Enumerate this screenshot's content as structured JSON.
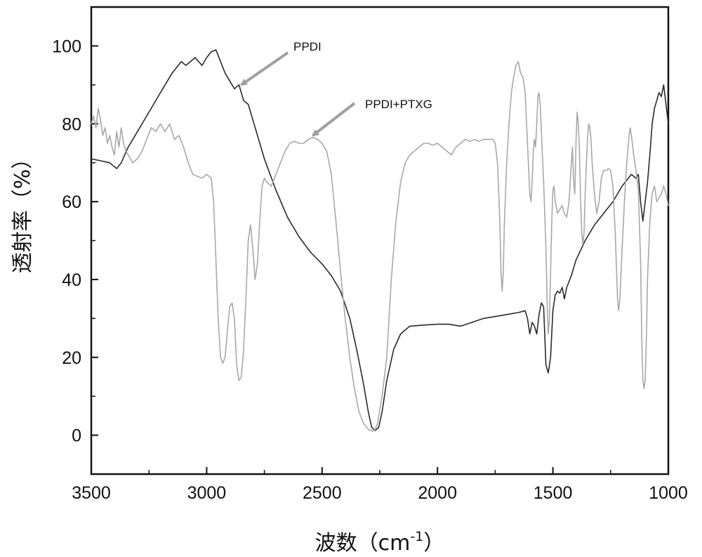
{
  "chart_data": {
    "type": "line",
    "title": "",
    "xlabel": "波数（cm",
    "xlabel_sup": "-1",
    "xlabel_close": "）",
    "ylabel": "透射率（%）",
    "xlim": [
      3500,
      1000
    ],
    "ylim": [
      -10,
      110
    ],
    "x_reversed": true,
    "grid": false,
    "xticks": [
      {
        "value": 3500,
        "label": "3500"
      },
      {
        "value": 3000,
        "label": "3000"
      },
      {
        "value": 2500,
        "label": "2500"
      },
      {
        "value": 2000,
        "label": "2000"
      },
      {
        "value": 1500,
        "label": "1500"
      },
      {
        "value": 1000,
        "label": "1000"
      }
    ],
    "yticks": [
      {
        "value": 0,
        "label": "0"
      },
      {
        "value": 20,
        "label": "20"
      },
      {
        "value": 40,
        "label": "40"
      },
      {
        "value": 60,
        "label": "60"
      },
      {
        "value": 80,
        "label": "80"
      },
      {
        "value": 100,
        "label": "100"
      }
    ],
    "annotations": [
      {
        "text": "PPDI",
        "points_to": [
          2850,
          90
        ]
      },
      {
        "text": "PPDI+PTXG",
        "points_to": [
          2540,
          77
        ]
      }
    ],
    "series": [
      {
        "name": "PPDI",
        "color": "#2a2a2a",
        "points": [
          [
            3500,
            71
          ],
          [
            3460,
            70.5
          ],
          [
            3420,
            70
          ],
          [
            3390,
            68.5
          ],
          [
            3370,
            70
          ],
          [
            3340,
            74
          ],
          [
            3300,
            78
          ],
          [
            3250,
            83
          ],
          [
            3200,
            88
          ],
          [
            3150,
            93
          ],
          [
            3110,
            96
          ],
          [
            3090,
            95
          ],
          [
            3070,
            96
          ],
          [
            3050,
            97
          ],
          [
            3020,
            95
          ],
          [
            3000,
            97
          ],
          [
            2980,
            98.5
          ],
          [
            2960,
            99
          ],
          [
            2940,
            96
          ],
          [
            2920,
            93
          ],
          [
            2900,
            91
          ],
          [
            2880,
            89
          ],
          [
            2860,
            90
          ],
          [
            2840,
            86
          ],
          [
            2820,
            85
          ],
          [
            2800,
            81
          ],
          [
            2750,
            71
          ],
          [
            2700,
            63
          ],
          [
            2650,
            56
          ],
          [
            2600,
            51
          ],
          [
            2550,
            47
          ],
          [
            2500,
            44
          ],
          [
            2460,
            41
          ],
          [
            2420,
            37
          ],
          [
            2380,
            30
          ],
          [
            2350,
            22
          ],
          [
            2320,
            13
          ],
          [
            2300,
            6
          ],
          [
            2285,
            2
          ],
          [
            2270,
            1.2
          ],
          [
            2255,
            2
          ],
          [
            2240,
            6
          ],
          [
            2220,
            14
          ],
          [
            2190,
            22
          ],
          [
            2160,
            26
          ],
          [
            2120,
            28
          ],
          [
            2060,
            28.3
          ],
          [
            2000,
            28.5
          ],
          [
            1950,
            28.5
          ],
          [
            1900,
            28
          ],
          [
            1850,
            29
          ],
          [
            1800,
            30
          ],
          [
            1750,
            30.5
          ],
          [
            1700,
            31
          ],
          [
            1650,
            31.5
          ],
          [
            1620,
            32
          ],
          [
            1610,
            30
          ],
          [
            1600,
            26
          ],
          [
            1590,
            29
          ],
          [
            1580,
            28
          ],
          [
            1570,
            26
          ],
          [
            1560,
            31
          ],
          [
            1550,
            34
          ],
          [
            1540,
            33
          ],
          [
            1530,
            18
          ],
          [
            1520,
            16
          ],
          [
            1510,
            20
          ],
          [
            1500,
            32
          ],
          [
            1490,
            36
          ],
          [
            1480,
            37
          ],
          [
            1470,
            36.5
          ],
          [
            1460,
            38
          ],
          [
            1450,
            35
          ],
          [
            1440,
            38
          ],
          [
            1420,
            41
          ],
          [
            1400,
            45
          ],
          [
            1360,
            50
          ],
          [
            1320,
            54
          ],
          [
            1280,
            57
          ],
          [
            1240,
            60
          ],
          [
            1200,
            64
          ],
          [
            1160,
            67
          ],
          [
            1140,
            66
          ],
          [
            1130,
            67
          ],
          [
            1120,
            60
          ],
          [
            1110,
            55
          ],
          [
            1100,
            60
          ],
          [
            1090,
            65
          ],
          [
            1080,
            72
          ],
          [
            1070,
            80
          ],
          [
            1060,
            84
          ],
          [
            1050,
            86
          ],
          [
            1040,
            88
          ],
          [
            1030,
            87
          ],
          [
            1020,
            90
          ],
          [
            1010,
            85
          ],
          [
            1000,
            80
          ]
        ]
      },
      {
        "name": "PPDI+PTXG",
        "color": "#a8a8a8",
        "points": [
          [
            3500,
            80
          ],
          [
            3490,
            82
          ],
          [
            3480,
            79
          ],
          [
            3470,
            84
          ],
          [
            3460,
            81
          ],
          [
            3450,
            77
          ],
          [
            3440,
            79
          ],
          [
            3430,
            75
          ],
          [
            3420,
            77
          ],
          [
            3410,
            74
          ],
          [
            3400,
            72
          ],
          [
            3390,
            78
          ],
          [
            3380,
            74
          ],
          [
            3370,
            79
          ],
          [
            3360,
            75
          ],
          [
            3350,
            73
          ],
          [
            3340,
            72
          ],
          [
            3320,
            70
          ],
          [
            3300,
            71
          ],
          [
            3280,
            73
          ],
          [
            3260,
            76
          ],
          [
            3240,
            79
          ],
          [
            3220,
            78
          ],
          [
            3200,
            80
          ],
          [
            3180,
            78
          ],
          [
            3160,
            80
          ],
          [
            3140,
            76
          ],
          [
            3120,
            77
          ],
          [
            3100,
            74
          ],
          [
            3080,
            70
          ],
          [
            3060,
            67
          ],
          [
            3040,
            66.5
          ],
          [
            3020,
            66
          ],
          [
            3000,
            67
          ],
          [
            2980,
            66
          ],
          [
            2970,
            60
          ],
          [
            2960,
            45
          ],
          [
            2950,
            30
          ],
          [
            2940,
            20
          ],
          [
            2930,
            18.5
          ],
          [
            2920,
            20
          ],
          [
            2910,
            27
          ],
          [
            2900,
            33
          ],
          [
            2890,
            34
          ],
          [
            2880,
            30
          ],
          [
            2870,
            18
          ],
          [
            2860,
            14
          ],
          [
            2850,
            15
          ],
          [
            2840,
            22
          ],
          [
            2830,
            35
          ],
          [
            2820,
            50
          ],
          [
            2810,
            54
          ],
          [
            2800,
            48
          ],
          [
            2790,
            40
          ],
          [
            2780,
            44
          ],
          [
            2770,
            55
          ],
          [
            2760,
            64
          ],
          [
            2750,
            66
          ],
          [
            2740,
            65
          ],
          [
            2720,
            64
          ],
          [
            2700,
            67
          ],
          [
            2680,
            70
          ],
          [
            2660,
            73
          ],
          [
            2640,
            75
          ],
          [
            2620,
            75.5
          ],
          [
            2600,
            75
          ],
          [
            2580,
            75
          ],
          [
            2560,
            76
          ],
          [
            2540,
            76.5
          ],
          [
            2520,
            76
          ],
          [
            2500,
            75
          ],
          [
            2480,
            73
          ],
          [
            2460,
            67
          ],
          [
            2440,
            55
          ],
          [
            2420,
            42
          ],
          [
            2400,
            30
          ],
          [
            2380,
            20
          ],
          [
            2360,
            12
          ],
          [
            2340,
            6
          ],
          [
            2320,
            3
          ],
          [
            2300,
            1.5
          ],
          [
            2280,
            1
          ],
          [
            2270,
            1.5
          ],
          [
            2260,
            3
          ],
          [
            2240,
            10
          ],
          [
            2220,
            20
          ],
          [
            2200,
            40
          ],
          [
            2180,
            55
          ],
          [
            2160,
            65
          ],
          [
            2140,
            70
          ],
          [
            2120,
            72
          ],
          [
            2100,
            73
          ],
          [
            2080,
            74
          ],
          [
            2060,
            75
          ],
          [
            2040,
            75
          ],
          [
            2020,
            74.5
          ],
          [
            2000,
            75
          ],
          [
            1980,
            74
          ],
          [
            1960,
            73
          ],
          [
            1940,
            72
          ],
          [
            1920,
            74
          ],
          [
            1900,
            75
          ],
          [
            1880,
            76
          ],
          [
            1860,
            75.5
          ],
          [
            1840,
            76
          ],
          [
            1820,
            75.5
          ],
          [
            1800,
            76
          ],
          [
            1780,
            76
          ],
          [
            1760,
            76
          ],
          [
            1750,
            75
          ],
          [
            1740,
            70
          ],
          [
            1730,
            55
          ],
          [
            1725,
            42
          ],
          [
            1720,
            37
          ],
          [
            1715,
            42
          ],
          [
            1710,
            55
          ],
          [
            1700,
            70
          ],
          [
            1690,
            80
          ],
          [
            1680,
            88
          ],
          [
            1670,
            92
          ],
          [
            1660,
            95
          ],
          [
            1650,
            96
          ],
          [
            1640,
            93
          ],
          [
            1630,
            92
          ],
          [
            1620,
            88
          ],
          [
            1610,
            75
          ],
          [
            1600,
            62
          ],
          [
            1595,
            60
          ],
          [
            1590,
            65
          ],
          [
            1585,
            73
          ],
          [
            1580,
            76
          ],
          [
            1575,
            74
          ],
          [
            1570,
            80
          ],
          [
            1565,
            87
          ],
          [
            1560,
            88
          ],
          [
            1555,
            85
          ],
          [
            1550,
            78
          ],
          [
            1540,
            65
          ],
          [
            1530,
            48
          ],
          [
            1525,
            34
          ],
          [
            1520,
            26
          ],
          [
            1515,
            30
          ],
          [
            1510,
            42
          ],
          [
            1505,
            55
          ],
          [
            1500,
            63
          ],
          [
            1495,
            64
          ],
          [
            1490,
            60
          ],
          [
            1480,
            57
          ],
          [
            1470,
            58
          ],
          [
            1460,
            59
          ],
          [
            1450,
            57
          ],
          [
            1440,
            56
          ],
          [
            1430,
            60
          ],
          [
            1420,
            70
          ],
          [
            1415,
            74
          ],
          [
            1410,
            65
          ],
          [
            1405,
            62
          ],
          [
            1400,
            75
          ],
          [
            1395,
            83
          ],
          [
            1390,
            80
          ],
          [
            1385,
            73
          ],
          [
            1380,
            60
          ],
          [
            1375,
            52
          ],
          [
            1370,
            49
          ],
          [
            1365,
            52
          ],
          [
            1360,
            62
          ],
          [
            1355,
            70
          ],
          [
            1350,
            76
          ],
          [
            1345,
            80
          ],
          [
            1340,
            79
          ],
          [
            1335,
            76
          ],
          [
            1330,
            70
          ],
          [
            1320,
            62
          ],
          [
            1310,
            57
          ],
          [
            1300,
            60
          ],
          [
            1290,
            66
          ],
          [
            1280,
            68
          ],
          [
            1270,
            68
          ],
          [
            1260,
            68.5
          ],
          [
            1250,
            68
          ],
          [
            1240,
            64
          ],
          [
            1230,
            52
          ],
          [
            1220,
            35
          ],
          [
            1215,
            32
          ],
          [
            1210,
            35
          ],
          [
            1200,
            48
          ],
          [
            1190,
            60
          ],
          [
            1180,
            70
          ],
          [
            1170,
            77
          ],
          [
            1165,
            79
          ],
          [
            1160,
            77
          ],
          [
            1150,
            72
          ],
          [
            1140,
            68
          ],
          [
            1130,
            63
          ],
          [
            1120,
            45
          ],
          [
            1115,
            25
          ],
          [
            1110,
            14
          ],
          [
            1105,
            12
          ],
          [
            1100,
            14
          ],
          [
            1095,
            25
          ],
          [
            1090,
            40
          ],
          [
            1080,
            55
          ],
          [
            1070,
            62
          ],
          [
            1060,
            64
          ],
          [
            1050,
            60
          ],
          [
            1040,
            61
          ],
          [
            1030,
            62
          ],
          [
            1020,
            64
          ],
          [
            1010,
            62
          ],
          [
            1000,
            59
          ]
        ]
      }
    ]
  }
}
